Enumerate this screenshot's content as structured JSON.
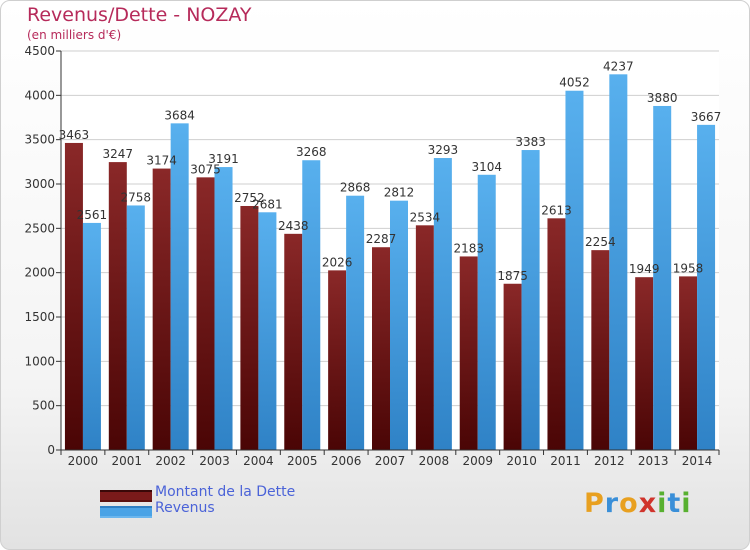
{
  "chart_data": {
    "type": "bar",
    "title": "Revenus/Dette - NOZAY",
    "subtitle": "(en milliers d'€)",
    "categories": [
      "2000",
      "2001",
      "2002",
      "2003",
      "2004",
      "2005",
      "2006",
      "2007",
      "2008",
      "2009",
      "2010",
      "2011",
      "2012",
      "2013",
      "2014"
    ],
    "series": [
      {
        "name": "Montant de la Dette",
        "color": "#7a1a1a",
        "values": [
          3463,
          3247,
          3174,
          3075,
          2752,
          2438,
          2026,
          2287,
          2534,
          2183,
          1875,
          2613,
          2254,
          1949,
          1958
        ],
        "labels": [
          "3463",
          "3247",
          "3174",
          "3075",
          "2752",
          "2438",
          "2026",
          "2287",
          "2534",
          "2183",
          "1875",
          "2613",
          "2254",
          "1949",
          "1958"
        ]
      },
      {
        "name": "Revenus",
        "color": "#4aa3e6",
        "values": [
          2561,
          2758,
          3684,
          3191,
          2681,
          3268,
          2868,
          2812,
          3293,
          3104,
          3383,
          4052,
          4237,
          3880,
          3667
        ],
        "labels": [
          "2561",
          "2758",
          "3684",
          "3191",
          "2681",
          "3268",
          "2868",
          "2812",
          "3293",
          "3104",
          "3383",
          "4052",
          "4237",
          "3880",
          "3667"
        ]
      }
    ],
    "yticks": [
      0,
      500,
      1000,
      1500,
      2000,
      2500,
      3000,
      3500,
      4000,
      4500
    ],
    "ylim": [
      0,
      4500
    ],
    "grid": true,
    "legend": "bottom-left"
  },
  "logo": {
    "letters": [
      "P",
      "r",
      "o",
      "x",
      "i",
      "t",
      "i"
    ],
    "colors": [
      "#e8a020",
      "#3a8fd8",
      "#e8a020",
      "#d0342c",
      "#58b030",
      "#3a8fd8",
      "#58b030"
    ]
  }
}
